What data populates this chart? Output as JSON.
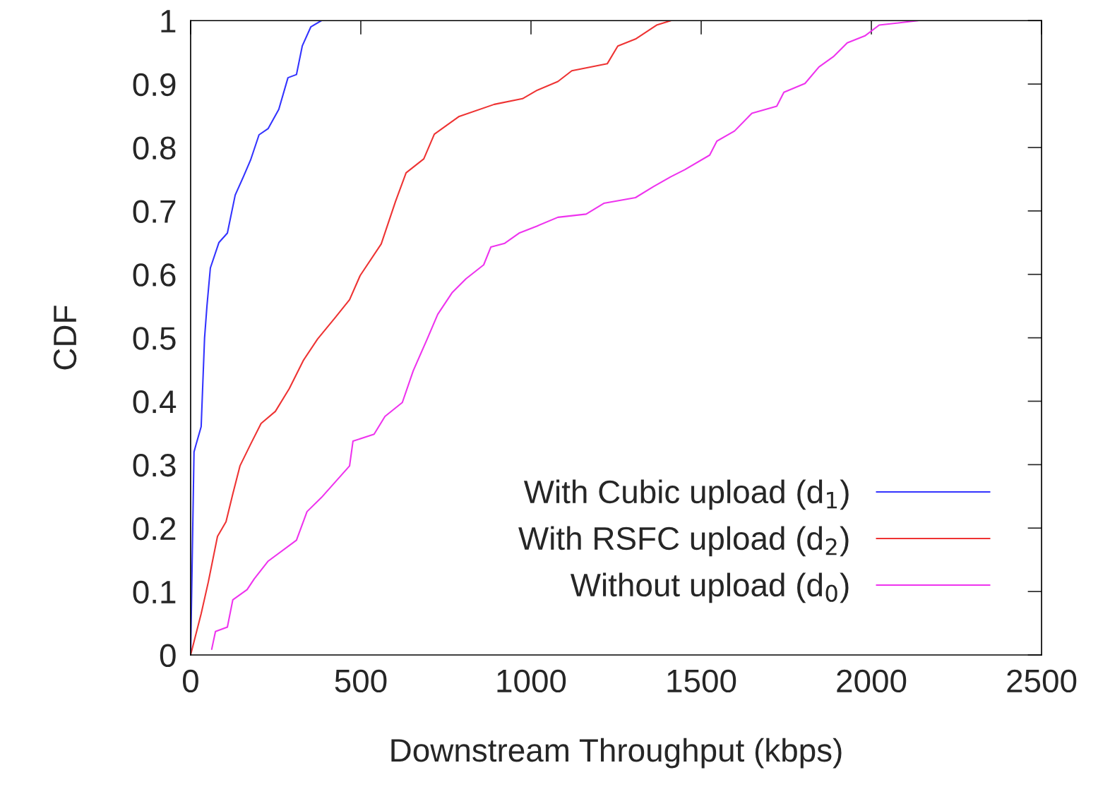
{
  "chart_data": {
    "type": "line",
    "xlabel": "Downstream Throughput (kbps)",
    "ylabel": "CDF",
    "xlim": [
      0,
      2500
    ],
    "xticks": [
      0,
      500,
      1000,
      1500,
      2000,
      2500
    ],
    "ylim": [
      0,
      1
    ],
    "yticks": [
      0,
      0.1,
      0.2,
      0.3,
      0.4,
      0.5,
      0.6,
      0.7,
      0.8,
      0.9,
      1
    ],
    "grid": false,
    "legend": "bottom right",
    "series": [
      {
        "name": "With Cubic upload (d$_{1}$)",
        "color": "#3333ff",
        "x": [
          0,
          10,
          15,
          31,
          41,
          48,
          58,
          83,
          108,
          131,
          156,
          176,
          201,
          228,
          259,
          286,
          311,
          328,
          353,
          384
        ],
        "values": [
          0,
          0.32,
          0.33,
          0.36,
          0.5,
          0.55,
          0.61,
          0.65,
          0.665,
          0.725,
          0.755,
          0.78,
          0.82,
          0.83,
          0.86,
          0.91,
          0.915,
          0.96,
          0.99,
          1
        ]
      },
      {
        "name": "With RSFC upload (d$_{2}$)",
        "color": "#ee3333",
        "x": [
          0,
          31,
          52,
          79,
          104,
          124,
          145,
          176,
          207,
          249,
          290,
          332,
          373,
          425,
          467,
          498,
          560,
          602,
          633,
          685,
          716,
          789,
          892,
          975,
          1017,
          1079,
          1120,
          1224,
          1255,
          1307,
          1369,
          1411
        ],
        "values": [
          0,
          0.065,
          0.115,
          0.187,
          0.21,
          0.254,
          0.298,
          0.332,
          0.365,
          0.384,
          0.42,
          0.465,
          0.498,
          0.532,
          0.56,
          0.598,
          0.648,
          0.715,
          0.76,
          0.782,
          0.821,
          0.849,
          0.868,
          0.877,
          0.89,
          0.904,
          0.921,
          0.932,
          0.96,
          0.971,
          0.993,
          1
        ]
      },
      {
        "name": "Without upload (d$_{0}$)",
        "color": "#ee33ee",
        "x": [
          62,
          73,
          108,
          124,
          166,
          187,
          228,
          311,
          342,
          384,
          467,
          477,
          539,
          571,
          622,
          654,
          695,
          726,
          768,
          809,
          861,
          882,
          923,
          965,
          1017,
          1079,
          1162,
          1214,
          1307,
          1359,
          1411,
          1452,
          1525,
          1546,
          1598,
          1649,
          1722,
          1743,
          1805,
          1846,
          1888,
          1929,
          1981,
          2023,
          2137
        ],
        "values": [
          0.009,
          0.037,
          0.044,
          0.087,
          0.103,
          0.12,
          0.148,
          0.181,
          0.226,
          0.248,
          0.298,
          0.337,
          0.348,
          0.376,
          0.398,
          0.448,
          0.498,
          0.537,
          0.571,
          0.593,
          0.615,
          0.643,
          0.649,
          0.665,
          0.676,
          0.69,
          0.695,
          0.712,
          0.721,
          0.738,
          0.754,
          0.765,
          0.788,
          0.81,
          0.826,
          0.854,
          0.865,
          0.887,
          0.901,
          0.927,
          0.943,
          0.965,
          0.976,
          0.993,
          1
        ]
      }
    ]
  }
}
